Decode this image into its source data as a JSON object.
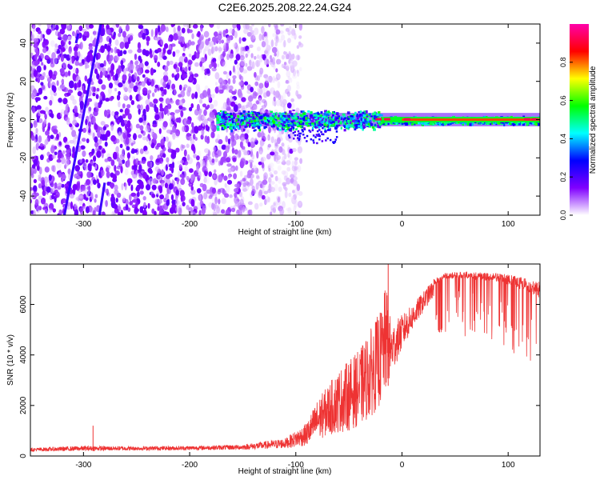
{
  "title": "C2E6.2025.208.22.24.G24",
  "chart_data": [
    {
      "type": "heatmap",
      "xlabel": "Height of straight line (km)",
      "ylabel": "Frequency (Hz)",
      "xlim": [
        -350,
        130
      ],
      "ylim": [
        -50,
        50
      ],
      "xticks": [
        "-300",
        "-200",
        "-100",
        "0",
        "100"
      ],
      "xtick_values": [
        -300,
        -200,
        -100,
        0,
        100
      ],
      "yticks": [
        "-40",
        "-20",
        "0",
        "20",
        "40"
      ],
      "ytick_values": [
        -40,
        -20,
        0,
        20,
        40
      ],
      "colorbar": {
        "label": "Normalized spectral amplitude",
        "range": [
          0,
          1
        ],
        "ticks": [
          "0.0",
          "0.2",
          "0.4",
          "0.6",
          "0.8"
        ],
        "tick_values": [
          0.0,
          0.2,
          0.4,
          0.6,
          0.8
        ],
        "colormap": [
          "#ffffff",
          "#8000ff",
          "#0000ff",
          "#00ffff",
          "#00ff00",
          "#ffff00",
          "#ff0000",
          "#ff00aa"
        ]
      },
      "features": {
        "noise_region_x": [
          -350,
          -105
        ],
        "signal_band_center_hz": 0,
        "signal_band_x": [
          -175,
          130
        ]
      }
    },
    {
      "type": "line",
      "xlabel": "Height of straight line (km)",
      "ylabel": "SNR (10 * v/v)",
      "xlim": [
        -350,
        130
      ],
      "ylim": [
        0,
        7600
      ],
      "xticks": [
        "-300",
        "-200",
        "-100",
        "0",
        "100"
      ],
      "xtick_values": [
        -300,
        -200,
        -100,
        0,
        100
      ],
      "yticks": [
        "0",
        "2000",
        "4000",
        "6000"
      ],
      "ytick_values": [
        0,
        2000,
        4000,
        6000
      ],
      "line_color": "#ee3333",
      "envelope": {
        "x": [
          -350,
          -300,
          -250,
          -200,
          -150,
          -110,
          -90,
          -80,
          -70,
          -60,
          -50,
          -40,
          -30,
          -20,
          -15,
          -10,
          0,
          10,
          20,
          30,
          40,
          60,
          80,
          100,
          120,
          130
        ],
        "base": [
          180,
          200,
          220,
          230,
          250,
          300,
          400,
          600,
          800,
          900,
          1000,
          1200,
          1500,
          2000,
          2500,
          3200,
          4200,
          5000,
          5700,
          6300,
          6600,
          6500,
          6300,
          6000,
          5500,
          5000
        ],
        "peak": [
          320,
          400,
          380,
          400,
          450,
          700,
          1300,
          2200,
          2800,
          3400,
          3800,
          4200,
          5000,
          5800,
          6800,
          5200,
          5600,
          6000,
          6500,
          7000,
          7250,
          7300,
          7250,
          7200,
          7000,
          6900
        ]
      },
      "spikes": [
        {
          "x": -291,
          "y": 1200
        },
        {
          "x": -13,
          "y": 7600
        }
      ]
    }
  ]
}
